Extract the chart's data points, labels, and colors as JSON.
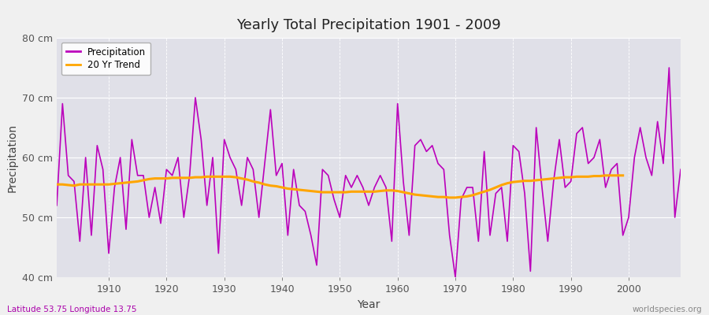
{
  "title": "Yearly Total Precipitation 1901 - 2009",
  "xlabel": "Year",
  "ylabel": "Precipitation",
  "lat_lon_label": "Latitude 53.75 Longitude 13.75",
  "source_label": "worldspecies.org",
  "line_color": "#bb00bb",
  "trend_color": "#FFA500",
  "background_color": "#f0f0f0",
  "plot_bg_color": "#e0e0e8",
  "ylim": [
    40,
    80
  ],
  "yticks": [
    40,
    50,
    60,
    70,
    80
  ],
  "ytick_labels": [
    "40 cm",
    "50 cm",
    "60 cm",
    "70 cm",
    "80 cm"
  ],
  "years": [
    1901,
    1902,
    1903,
    1904,
    1905,
    1906,
    1907,
    1908,
    1909,
    1910,
    1911,
    1912,
    1913,
    1914,
    1915,
    1916,
    1917,
    1918,
    1919,
    1920,
    1921,
    1922,
    1923,
    1924,
    1925,
    1926,
    1927,
    1928,
    1929,
    1930,
    1931,
    1932,
    1933,
    1934,
    1935,
    1936,
    1937,
    1938,
    1939,
    1940,
    1941,
    1942,
    1943,
    1944,
    1945,
    1946,
    1947,
    1948,
    1949,
    1950,
    1951,
    1952,
    1953,
    1954,
    1955,
    1956,
    1957,
    1958,
    1959,
    1960,
    1961,
    1962,
    1963,
    1964,
    1965,
    1966,
    1967,
    1968,
    1969,
    1970,
    1971,
    1972,
    1973,
    1974,
    1975,
    1976,
    1977,
    1978,
    1979,
    1980,
    1981,
    1982,
    1983,
    1984,
    1985,
    1986,
    1987,
    1988,
    1989,
    1990,
    1991,
    1992,
    1993,
    1994,
    1995,
    1996,
    1997,
    1998,
    1999,
    2000,
    2001,
    2002,
    2003,
    2004,
    2005,
    2006,
    2007,
    2008,
    2009
  ],
  "precip": [
    52,
    69,
    57,
    56,
    46,
    60,
    47,
    62,
    58,
    44,
    55,
    60,
    48,
    63,
    57,
    57,
    50,
    55,
    49,
    58,
    57,
    60,
    50,
    57,
    70,
    63,
    52,
    60,
    44,
    63,
    60,
    58,
    52,
    60,
    58,
    50,
    59,
    68,
    57,
    59,
    47,
    58,
    52,
    51,
    47,
    42,
    58,
    57,
    53,
    50,
    57,
    55,
    57,
    55,
    52,
    55,
    57,
    55,
    46,
    69,
    56,
    47,
    62,
    63,
    61,
    62,
    59,
    58,
    47,
    40,
    53,
    55,
    55,
    46,
    61,
    47,
    54,
    55,
    46,
    62,
    61,
    54,
    41,
    65,
    55,
    46,
    56,
    63,
    55,
    56,
    64,
    65,
    59,
    60,
    63,
    55,
    58,
    59,
    47,
    50,
    60,
    65,
    60,
    57,
    66,
    59,
    75,
    50,
    58
  ],
  "trend": [
    55.5,
    55.5,
    55.4,
    55.3,
    55.5,
    55.5,
    55.5,
    55.5,
    55.5,
    55.5,
    55.6,
    55.7,
    55.8,
    55.9,
    56.0,
    56.2,
    56.4,
    56.5,
    56.5,
    56.5,
    56.6,
    56.6,
    56.6,
    56.6,
    56.7,
    56.7,
    56.8,
    56.8,
    56.8,
    56.8,
    56.8,
    56.7,
    56.5,
    56.3,
    56.0,
    55.8,
    55.5,
    55.3,
    55.2,
    55.0,
    54.8,
    54.7,
    54.6,
    54.5,
    54.4,
    54.3,
    54.2,
    54.2,
    54.2,
    54.2,
    54.2,
    54.3,
    54.3,
    54.3,
    54.3,
    54.3,
    54.4,
    54.5,
    54.5,
    54.4,
    54.2,
    54.0,
    53.8,
    53.7,
    53.6,
    53.5,
    53.4,
    53.4,
    53.3,
    53.3,
    53.4,
    53.5,
    53.7,
    54.0,
    54.3,
    54.6,
    55.0,
    55.4,
    55.7,
    55.9,
    56.0,
    56.1,
    56.1,
    56.2,
    56.3,
    56.4,
    56.5,
    56.6,
    56.7,
    56.7,
    56.8,
    56.8,
    56.8,
    56.9,
    56.9,
    57.0,
    57.0,
    57.0,
    57.0
  ],
  "legend_entries": [
    "Precipitation",
    "20 Yr Trend"
  ]
}
